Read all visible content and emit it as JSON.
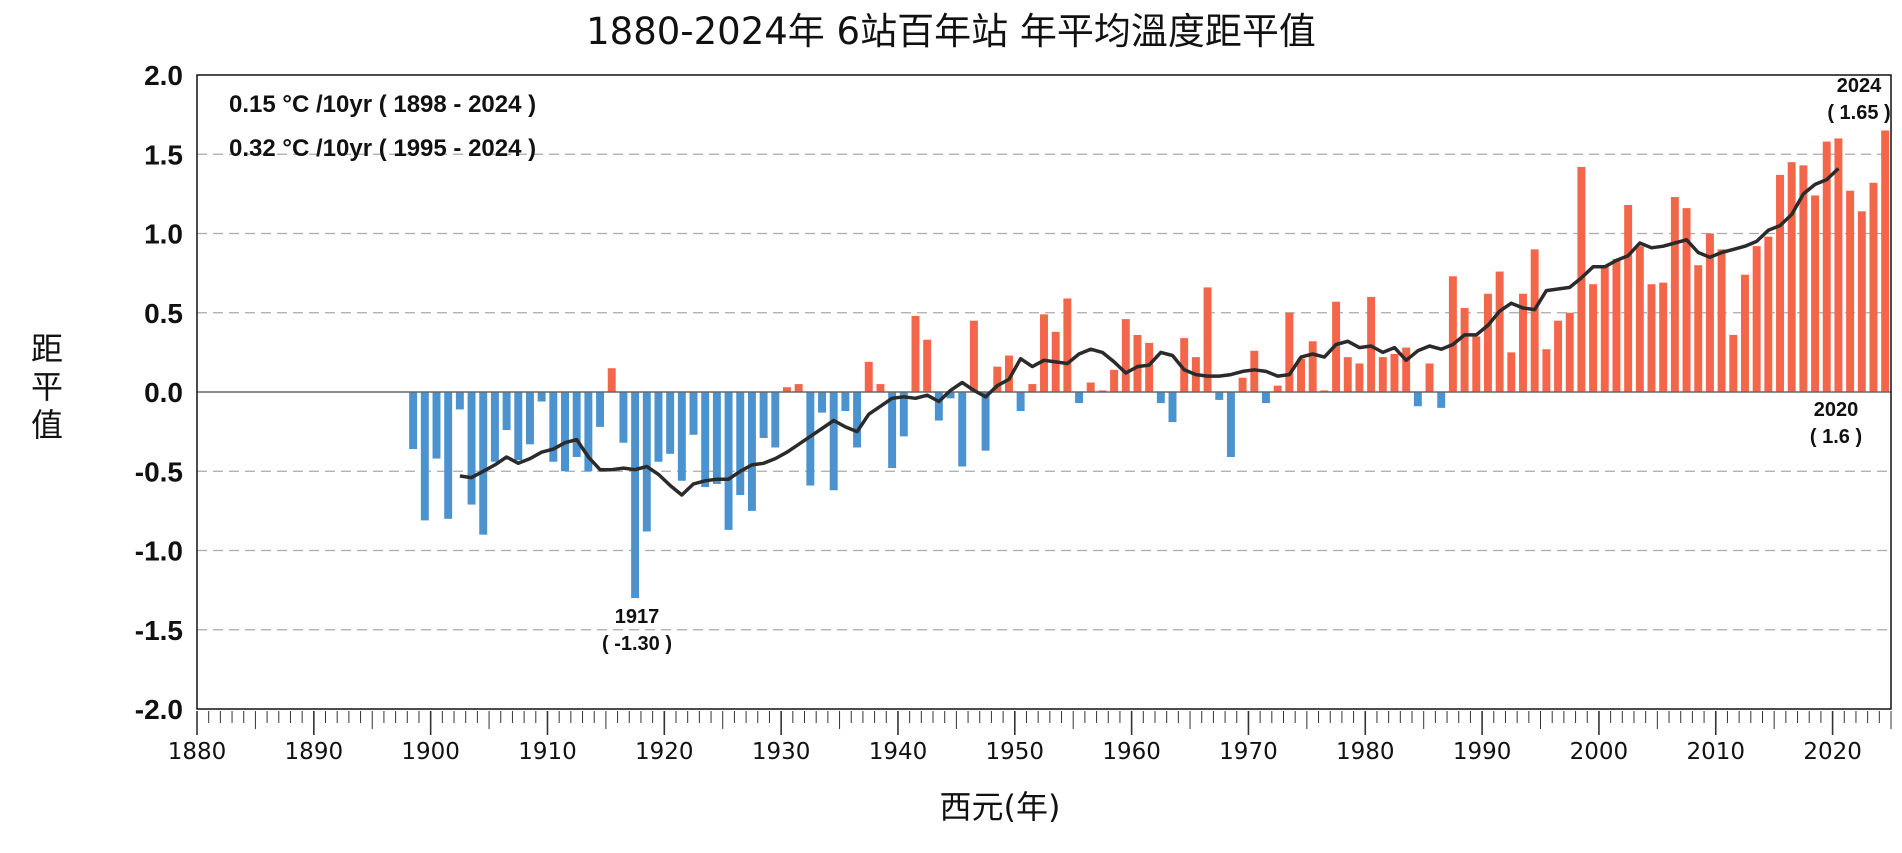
{
  "chart_data": {
    "type": "bar",
    "title": "1880-2024年 6站百年站 年平均溫度距平值",
    "xlabel": "西元(年)",
    "ylabel": [
      "距",
      "平",
      "值"
    ],
    "xlim": [
      1880,
      2025
    ],
    "ylim": [
      -2.0,
      2.0
    ],
    "yticks": [
      "2.0",
      "1.5",
      "1.0",
      "0.5",
      "0.0",
      "-0.5",
      "-1.0",
      "-1.5",
      "-2.0"
    ],
    "ytick_values": [
      2.0,
      1.5,
      1.0,
      0.5,
      0.0,
      -0.5,
      -1.0,
      -1.5,
      -2.0
    ],
    "xticks": [
      "1880",
      "1890",
      "1900",
      "1910",
      "1920",
      "1930",
      "1940",
      "1950",
      "1960",
      "1970",
      "1980",
      "1990",
      "2000",
      "2010",
      "2020"
    ],
    "xtick_values": [
      1880,
      1890,
      1900,
      1910,
      1920,
      1930,
      1940,
      1950,
      1960,
      1970,
      1980,
      1990,
      2000,
      2010,
      2020
    ],
    "grid": "horizontal dashed",
    "colors": {
      "positive": "#f4664a",
      "negative": "#4b92cf",
      "moving_average": "#2b2b2b",
      "zero_line": "#666666",
      "grid": "#aaaaaa"
    },
    "trend_text": [
      "0.15 °C /10yr ( 1898 - 2024 )",
      "0.32 °C /10yr ( 1995 - 2024 )"
    ],
    "annotations": [
      {
        "year": 1917,
        "value": -1.3,
        "lines": [
          "1917",
          "( -1.30 )"
        ],
        "position": "below"
      },
      {
        "year": 2020,
        "value": 1.6,
        "lines": [
          "2020",
          "( 1.6 )"
        ],
        "position": "below-axis"
      },
      {
        "year": 2024,
        "value": 1.65,
        "lines": [
          "2024",
          "( 1.65 )"
        ],
        "position": "above"
      }
    ],
    "series": [
      {
        "kind": "bar",
        "years": [
          1898,
          1899,
          1900,
          1901,
          1902,
          1903,
          1904,
          1905,
          1906,
          1907,
          1908,
          1909,
          1910,
          1911,
          1912,
          1913,
          1914,
          1915,
          1916,
          1917,
          1918,
          1919,
          1920,
          1921,
          1922,
          1923,
          1924,
          1925,
          1926,
          1927,
          1928,
          1929,
          1930,
          1931,
          1932,
          1933,
          1934,
          1935,
          1936,
          1937,
          1938,
          1939,
          1940,
          1941,
          1942,
          1943,
          1944,
          1945,
          1946,
          1947,
          1948,
          1949,
          1950,
          1951,
          1952,
          1953,
          1954,
          1955,
          1956,
          1957,
          1958,
          1959,
          1960,
          1961,
          1962,
          1963,
          1964,
          1965,
          1966,
          1967,
          1968,
          1969,
          1970,
          1971,
          1972,
          1973,
          1974,
          1975,
          1976,
          1977,
          1978,
          1979,
          1980,
          1981,
          1982,
          1983,
          1984,
          1985,
          1986,
          1987,
          1988,
          1989,
          1990,
          1991,
          1992,
          1993,
          1994,
          1995,
          1996,
          1997,
          1998,
          1999,
          2000,
          2001,
          2002,
          2003,
          2004,
          2005,
          2006,
          2007,
          2008,
          2009,
          2010,
          2011,
          2012,
          2013,
          2014,
          2015,
          2016,
          2017,
          2018,
          2019,
          2020,
          2021,
          2022,
          2023,
          2024
        ],
        "values": [
          -0.36,
          -0.81,
          -0.42,
          -0.8,
          -0.11,
          -0.71,
          -0.9,
          -0.44,
          -0.24,
          -0.43,
          -0.33,
          -0.06,
          -0.44,
          -0.5,
          -0.41,
          -0.5,
          -0.22,
          0.15,
          -0.32,
          -1.3,
          -0.88,
          -0.44,
          -0.39,
          -0.56,
          -0.27,
          -0.6,
          -0.58,
          -0.87,
          -0.65,
          -0.75,
          -0.29,
          -0.35,
          0.03,
          0.05,
          -0.59,
          -0.13,
          -0.62,
          -0.12,
          -0.35,
          0.19,
          0.05,
          -0.48,
          -0.28,
          0.48,
          0.33,
          -0.18,
          -0.04,
          -0.47,
          0.45,
          -0.37,
          0.16,
          0.23,
          -0.12,
          0.05,
          0.49,
          0.38,
          0.59,
          -0.07,
          0.06,
          0.01,
          0.14,
          0.46,
          0.36,
          0.31,
          -0.07,
          -0.19,
          0.34,
          0.22,
          0.66,
          -0.05,
          -0.41,
          0.09,
          0.26,
          -0.07,
          0.04,
          0.5,
          0.21,
          0.32,
          0.01,
          0.57,
          0.22,
          0.18,
          0.6,
          0.22,
          0.24,
          0.28,
          -0.09,
          0.18,
          -0.1,
          0.73,
          0.53,
          0.35,
          0.62,
          0.76,
          0.25,
          0.62,
          0.9,
          0.27,
          0.45,
          0.5,
          1.42,
          0.68,
          0.8,
          0.84,
          1.18,
          0.92,
          0.68,
          0.69,
          1.23,
          1.16,
          0.8,
          1.0,
          0.9,
          0.36,
          0.74,
          0.92,
          0.98,
          1.37,
          1.45,
          1.43,
          1.24,
          1.58,
          1.6,
          1.27,
          1.14,
          1.32,
          1.65
        ]
      },
      {
        "kind": "line",
        "name": "moving average",
        "years": [
          1902,
          1903,
          1904,
          1905,
          1906,
          1907,
          1908,
          1909,
          1910,
          1911,
          1912,
          1913,
          1914,
          1915,
          1916,
          1917,
          1918,
          1919,
          1920,
          1921,
          1922,
          1923,
          1924,
          1925,
          1926,
          1927,
          1928,
          1929,
          1930,
          1931,
          1932,
          1933,
          1934,
          1935,
          1936,
          1937,
          1938,
          1939,
          1940,
          1941,
          1942,
          1943,
          1944,
          1945,
          1946,
          1947,
          1948,
          1949,
          1950,
          1951,
          1952,
          1953,
          1954,
          1955,
          1956,
          1957,
          1958,
          1959,
          1960,
          1961,
          1962,
          1963,
          1964,
          1965,
          1966,
          1967,
          1968,
          1969,
          1970,
          1971,
          1972,
          1973,
          1974,
          1975,
          1976,
          1977,
          1978,
          1979,
          1980,
          1981,
          1982,
          1983,
          1984,
          1985,
          1986,
          1987,
          1988,
          1989,
          1990,
          1991,
          1992,
          1993,
          1994,
          1995,
          1996,
          1997,
          1998,
          1999,
          2000,
          2001,
          2002,
          2003,
          2004,
          2005,
          2006,
          2007,
          2008,
          2009,
          2010,
          2011,
          2012,
          2013,
          2014,
          2015,
          2016,
          2017,
          2018,
          2019,
          2020
        ],
        "values": [
          -0.53,
          -0.54,
          -0.5,
          -0.46,
          -0.41,
          -0.45,
          -0.42,
          -0.38,
          -0.36,
          -0.32,
          -0.3,
          -0.41,
          -0.49,
          -0.49,
          -0.48,
          -0.49,
          -0.47,
          -0.52,
          -0.59,
          -0.65,
          -0.58,
          -0.56,
          -0.55,
          -0.55,
          -0.5,
          -0.46,
          -0.45,
          -0.42,
          -0.38,
          -0.33,
          -0.28,
          -0.23,
          -0.18,
          -0.22,
          -0.25,
          -0.14,
          -0.09,
          -0.04,
          -0.03,
          -0.04,
          -0.02,
          -0.06,
          0.01,
          0.06,
          0.01,
          -0.03,
          0.04,
          0.08,
          0.21,
          0.16,
          0.2,
          0.19,
          0.18,
          0.24,
          0.27,
          0.25,
          0.19,
          0.12,
          0.16,
          0.17,
          0.25,
          0.23,
          0.14,
          0.11,
          0.1,
          0.1,
          0.11,
          0.13,
          0.14,
          0.13,
          0.1,
          0.11,
          0.22,
          0.24,
          0.22,
          0.3,
          0.32,
          0.28,
          0.29,
          0.25,
          0.28,
          0.2,
          0.26,
          0.29,
          0.27,
          0.3,
          0.36,
          0.36,
          0.42,
          0.51,
          0.56,
          0.53,
          0.52,
          0.64,
          0.65,
          0.66,
          0.72,
          0.79,
          0.79,
          0.83,
          0.86,
          0.94,
          0.91,
          0.92,
          0.94,
          0.96,
          0.88,
          0.85,
          0.88,
          0.9,
          0.92,
          0.95,
          1.02,
          1.05,
          1.12,
          1.25,
          1.31,
          1.34,
          1.41
        ]
      }
    ]
  }
}
